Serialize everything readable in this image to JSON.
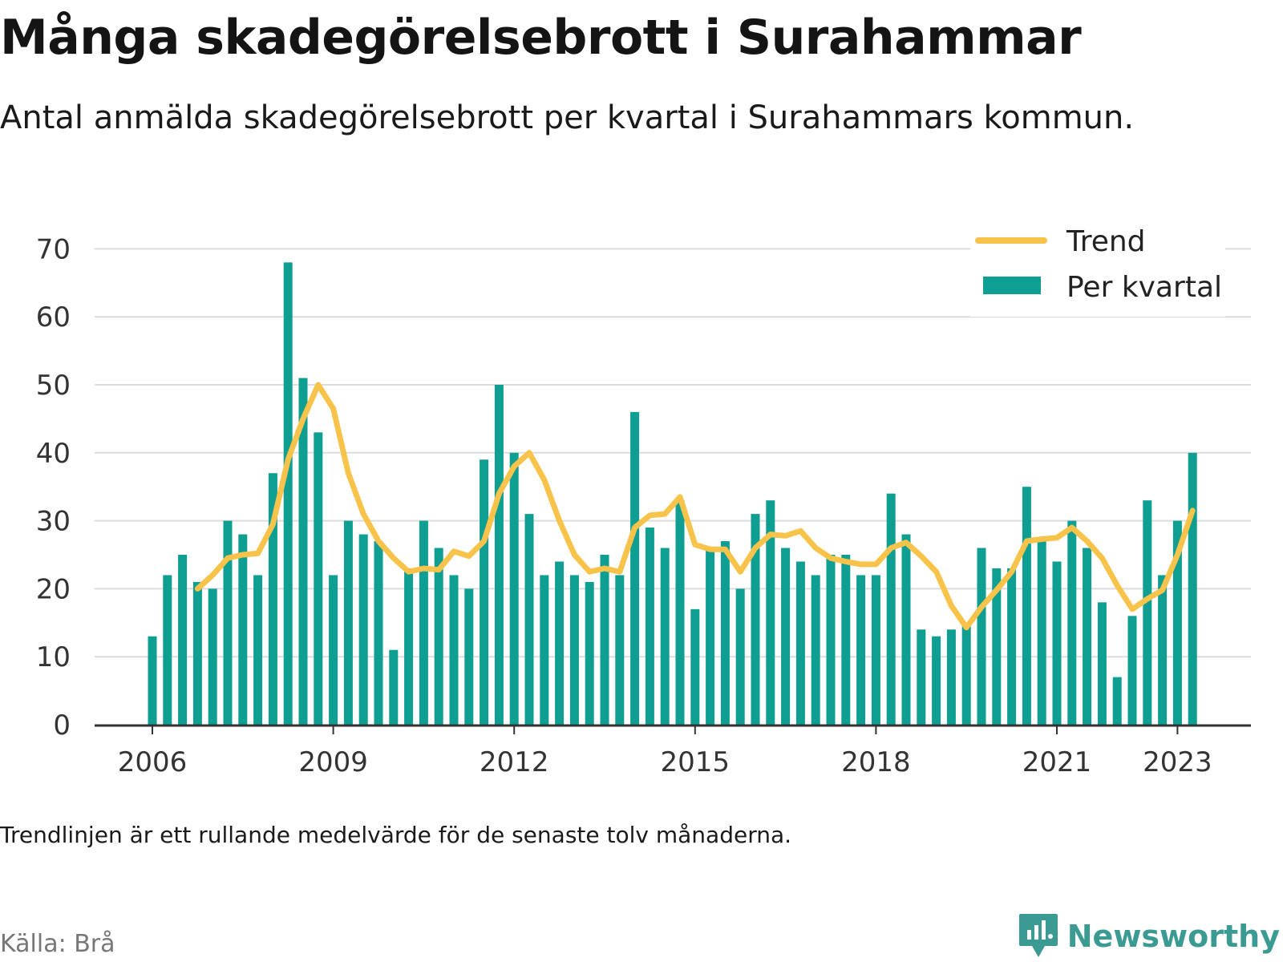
{
  "title": "Många skadegörelsebrott i Surahammar",
  "subtitle": "Antal anmälda skadegörelsebrott per kvartal i Surahammars kommun.",
  "note": "Trendlinjen är ett rullande medelvärde för de senaste tolv månaderna.",
  "source": "Källa: Brå",
  "brand": {
    "name": "Newsworthy",
    "icon": "newsworthy-logo-icon"
  },
  "colors": {
    "bars": "#0f9e92",
    "trend": "#f8c34a",
    "grid": "#dddddd",
    "axis": "#333333"
  },
  "chart_data": {
    "type": "bar",
    "x_start": "2006 Q1",
    "categories_note": "quarterly, 2006 Q1 – 2023 Q2",
    "xticks": [
      "2006",
      "2009",
      "2012",
      "2015",
      "2018",
      "2021",
      "2023"
    ],
    "yticks": [
      "0",
      "10",
      "20",
      "30",
      "40",
      "50",
      "60",
      "70"
    ],
    "ylim": [
      0,
      70
    ],
    "grid": true,
    "legend_position": "top-right",
    "series": [
      {
        "name": "Per kvartal",
        "type": "bar",
        "values": [
          13,
          22,
          25,
          21,
          20,
          30,
          28,
          22,
          37,
          68,
          51,
          43,
          22,
          30,
          28,
          27,
          11,
          23,
          30,
          26,
          22,
          20,
          39,
          50,
          40,
          31,
          22,
          24,
          22,
          21,
          25,
          22,
          46,
          29,
          26,
          33,
          17,
          26,
          27,
          20,
          31,
          33,
          26,
          24,
          22,
          25,
          25,
          22,
          22,
          34,
          28,
          14,
          13,
          14,
          15,
          26,
          23,
          23,
          35,
          27,
          24,
          30,
          26,
          18,
          7,
          16,
          33,
          22,
          30,
          40
        ]
      },
      {
        "name": "Trend",
        "type": "line",
        "start_index": 3,
        "values": [
          20,
          22,
          24.5,
          25,
          25.2,
          29.5,
          39,
          45,
          50,
          46.5,
          37,
          31,
          27,
          24.5,
          22.5,
          23,
          22.8,
          25.5,
          24.8,
          27,
          34,
          38,
          40,
          36,
          30,
          25,
          22.5,
          23,
          22.5,
          29,
          30.8,
          31,
          33.5,
          26.5,
          25.8,
          25.8,
          22.5,
          26,
          28,
          27.8,
          28.5,
          26,
          24.5,
          24,
          23.6,
          23.6,
          26,
          26.8,
          24.8,
          22.5,
          17.5,
          14.3,
          17.3,
          19.8,
          22.5,
          27,
          27.3,
          27.5,
          29,
          27,
          24.5,
          20.5,
          17,
          18.5,
          19.8,
          25,
          31.5
        ]
      }
    ]
  }
}
